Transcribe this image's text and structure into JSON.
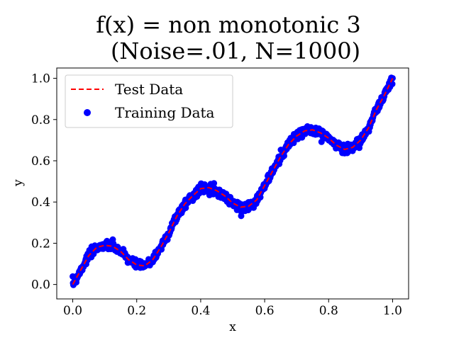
{
  "chart_data": {
    "type": "scatter",
    "title_line1": "f(x) = non monotonic 3",
    "title_line2": "(Noise=.01, N=1000)",
    "xlabel": "x",
    "ylabel": "y",
    "xlim": [
      -0.05,
      1.05
    ],
    "ylim": [
      -0.07,
      1.05
    ],
    "x_ticks": [
      0.0,
      0.2,
      0.4,
      0.6,
      0.8,
      1.0
    ],
    "x_tick_labels": [
      "0.0",
      "0.2",
      "0.4",
      "0.6",
      "0.8",
      "1.0"
    ],
    "y_ticks": [
      0.0,
      0.2,
      0.4,
      0.6,
      0.8,
      1.0
    ],
    "y_tick_labels": [
      "0.0",
      "0.2",
      "0.4",
      "0.6",
      "0.8",
      "1.0"
    ],
    "legend_position": "top-left",
    "grid": false,
    "series": [
      {
        "name": "Test Data",
        "kind": "line",
        "style": "dashed",
        "color": "#ff0000",
        "x": [
          0.0,
          0.025,
          0.05,
          0.075,
          0.1,
          0.125,
          0.15,
          0.175,
          0.2,
          0.225,
          0.25,
          0.275,
          0.3,
          0.325,
          0.35,
          0.375,
          0.4,
          0.425,
          0.45,
          0.475,
          0.5,
          0.525,
          0.55,
          0.575,
          0.6,
          0.625,
          0.65,
          0.675,
          0.7,
          0.725,
          0.75,
          0.775,
          0.8,
          0.825,
          0.85,
          0.875,
          0.9,
          0.925,
          0.95,
          0.975,
          1.0
        ],
        "y": [
          0.0,
          0.07,
          0.14,
          0.18,
          0.19,
          0.185,
          0.16,
          0.12,
          0.095,
          0.09,
          0.12,
          0.18,
          0.25,
          0.33,
          0.39,
          0.43,
          0.465,
          0.47,
          0.455,
          0.43,
          0.395,
          0.375,
          0.38,
          0.41,
          0.48,
          0.55,
          0.62,
          0.68,
          0.72,
          0.745,
          0.75,
          0.735,
          0.71,
          0.675,
          0.655,
          0.665,
          0.7,
          0.76,
          0.85,
          0.92,
          1.0
        ]
      },
      {
        "name": "Training Data",
        "kind": "scatter",
        "color": "#0000ff",
        "noise": 0.01,
        "n": 1000
      }
    ]
  }
}
